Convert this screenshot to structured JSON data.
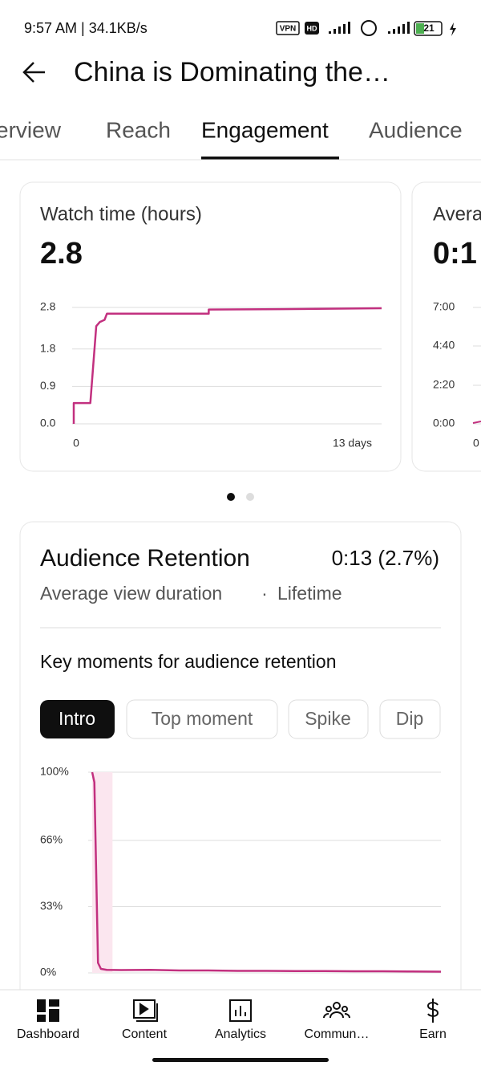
{
  "status_bar": {
    "time": "9:57 AM | 34.1KB/s",
    "vpn": "VPN",
    "hd": "HD",
    "battery": "21"
  },
  "header": {
    "title": "China is Dominating the…"
  },
  "tabs": [
    "erview",
    "Reach",
    "Engagement",
    "Audience"
  ],
  "metric_cards": [
    {
      "title": "Watch time (hours)",
      "value": "2.8",
      "chart_data": {
        "type": "line",
        "color": "#c2307f",
        "x": [
          0,
          0,
          0.7,
          0.95,
          1.1,
          1.3,
          1.4,
          5.7,
          5.7,
          8.8,
          13
        ],
        "values": [
          0,
          0.5,
          0.5,
          2.35,
          2.45,
          2.5,
          2.65,
          2.65,
          2.75,
          2.76,
          2.78
        ],
        "xlim": [
          0,
          13
        ],
        "xticks": [
          0,
          {
            "value": 13,
            "label": "13 days"
          }
        ],
        "ylim": [
          0,
          2.8
        ],
        "yticks": [
          {
            "value": 0,
            "label": "0.0"
          },
          0.9,
          1.8,
          2.8
        ],
        "grid": true
      }
    },
    {
      "title": "Avera",
      "value": "0:1",
      "y_tick_labels": [
        "7:00",
        "4:40",
        "2:20",
        "0:00"
      ],
      "x_tick_label": "0"
    }
  ],
  "retention": {
    "title": "Audience Retention",
    "summary": "0:13 (2.7%)",
    "subtitle": "Average view duration",
    "separator": "·",
    "period": "Lifetime",
    "section_title": "Key moments for audience retention",
    "chips": [
      "Intro",
      "Top moment",
      "Spike",
      "Dip"
    ],
    "chart_data": {
      "type": "line",
      "color": "#c2307f",
      "x": [
        0,
        3,
        8,
        12,
        20,
        40,
        80,
        120,
        160,
        200,
        240,
        280,
        320,
        360,
        400,
        440,
        480
      ],
      "values": [
        100,
        95,
        5,
        2,
        1.5,
        1.4,
        1.5,
        1.2,
        1.2,
        1.0,
        1.0,
        0.9,
        0.9,
        0.8,
        0.8,
        0.7,
        0.6
      ],
      "intro_range": [
        0,
        28
      ],
      "xlim": [
        0,
        480
      ],
      "ylim": [
        0,
        100
      ],
      "yticks": [
        {
          "value": 0,
          "label": "0%"
        },
        {
          "value": 33,
          "label": "33%"
        },
        {
          "value": 66,
          "label": "66%"
        },
        {
          "value": 100,
          "label": "100%"
        }
      ],
      "grid": true
    }
  },
  "nav": [
    "Dashboard",
    "Content",
    "Analytics",
    "Commun…",
    "Earn"
  ]
}
